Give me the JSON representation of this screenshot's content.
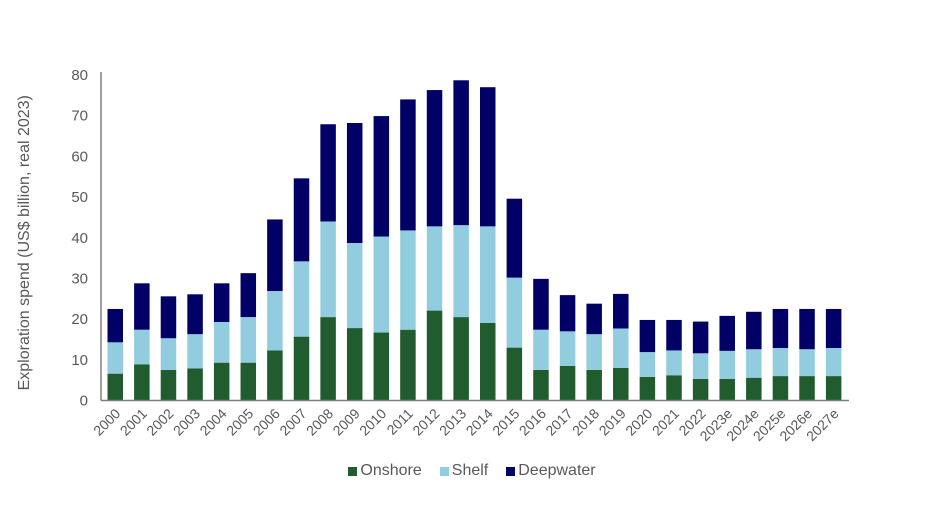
{
  "chart_data": {
    "type": "bar",
    "stacked": true,
    "title": "",
    "xlabel": "",
    "ylabel": "Exploration spend (US$ billion, real 2023)",
    "ylim": [
      0,
      80
    ],
    "yticks": [
      0,
      10,
      20,
      30,
      40,
      50,
      60,
      70,
      80
    ],
    "grid": false,
    "legend_position": "bottom",
    "categories": [
      "2000",
      "2001",
      "2002",
      "2003",
      "2004",
      "2005",
      "2006",
      "2007",
      "2008",
      "2009",
      "2010",
      "2011",
      "2012",
      "2013",
      "2014",
      "2015",
      "2016",
      "2017",
      "2018",
      "2019",
      "2020",
      "2021",
      "2022",
      "2023e",
      "2024e",
      "2025e",
      "2026e",
      "2027e"
    ],
    "series": [
      {
        "name": "Onshore",
        "color": "#215c2e",
        "values": [
          6.6,
          8.9,
          7.5,
          7.9,
          9.3,
          9.3,
          12.3,
          15.7,
          20.5,
          17.8,
          16.7,
          17.4,
          22.1,
          20.5,
          19.1,
          13.0,
          7.5,
          8.5,
          7.5,
          8.0,
          5.8,
          6.2,
          5.3,
          5.3,
          5.6,
          6.0,
          6.0,
          6.0
        ]
      },
      {
        "name": "Shelf",
        "color": "#92cddf",
        "values": [
          7.7,
          8.5,
          7.8,
          8.4,
          10.0,
          11.2,
          14.6,
          18.5,
          23.5,
          20.9,
          23.6,
          24.4,
          20.7,
          22.6,
          23.7,
          17.2,
          9.9,
          8.5,
          8.8,
          9.7,
          6.1,
          6.1,
          6.3,
          6.9,
          7.0,
          6.9,
          6.6,
          6.9
        ]
      },
      {
        "name": "Deepwater",
        "color": "#000066",
        "values": [
          8.2,
          11.4,
          10.3,
          9.8,
          9.5,
          10.8,
          17.6,
          20.4,
          23.9,
          29.5,
          29.6,
          32.2,
          33.5,
          35.6,
          34.2,
          19.4,
          12.5,
          8.9,
          7.5,
          8.5,
          7.9,
          7.5,
          7.8,
          8.6,
          9.2,
          9.6,
          9.9,
          9.6
        ]
      }
    ]
  }
}
